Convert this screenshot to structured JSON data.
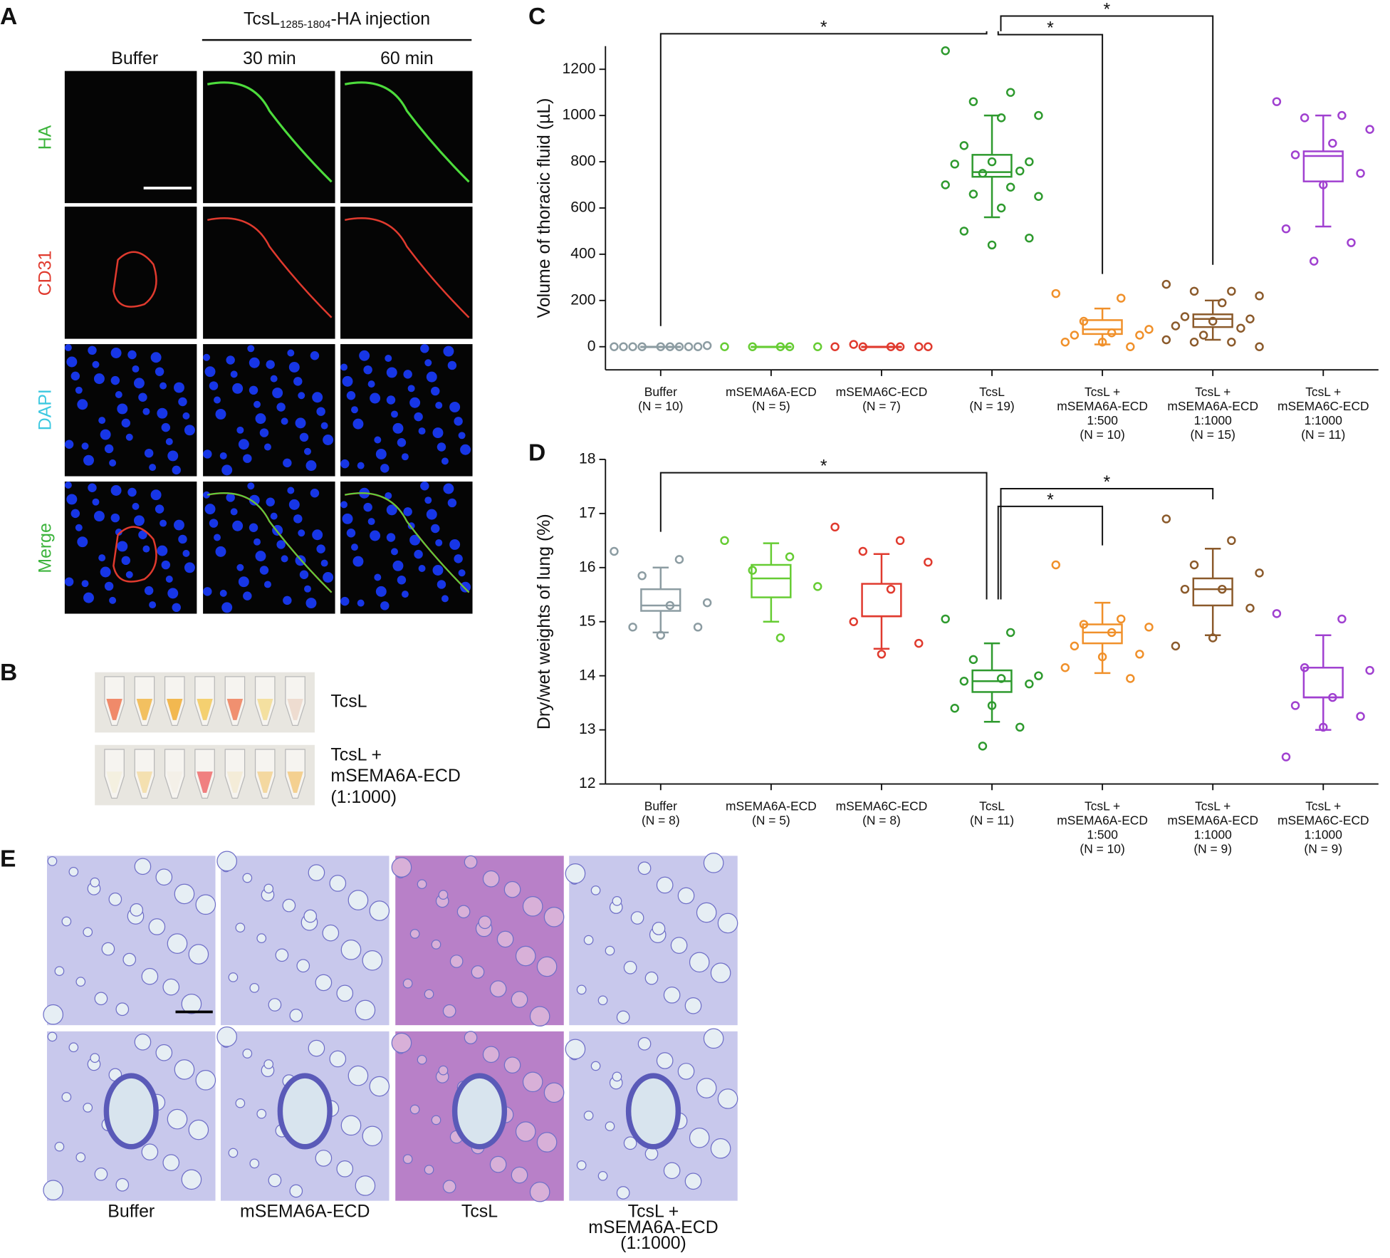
{
  "panels": {
    "A": {
      "label": "A",
      "header": {
        "main": "TcsL",
        "subscript": "1285-1804",
        "suffix": "-HA injection"
      },
      "columns": [
        "Buffer",
        "30 min",
        "60 min"
      ],
      "rows": [
        "HA",
        "CD31",
        "DAPI",
        "Merge"
      ]
    },
    "B": {
      "label": "B",
      "rows": [
        [
          "TcsL"
        ],
        [
          "TcsL +",
          "mSEMA6A-ECD",
          "(1:1000)"
        ]
      ]
    },
    "C": {
      "label": "C"
    },
    "D": {
      "label": "D"
    },
    "E": {
      "label": "E",
      "columns": [
        [
          "Buffer"
        ],
        [
          "mSEMA6A-ECD"
        ],
        [
          "TcsL"
        ],
        [
          "TcsL +",
          "mSEMA6A-ECD",
          "(1:1000)"
        ]
      ]
    }
  },
  "chart_data": [
    {
      "type": "box",
      "y_label": "Volume of thoracic fluid (µL)",
      "ylim": [
        -100,
        1300
      ],
      "yticks": [
        0,
        200,
        400,
        600,
        800,
        1000,
        1200
      ],
      "categories": [
        [
          "Buffer"
        ],
        [
          "mSEMA6A-ECD"
        ],
        [
          "mSEMA6C-ECD"
        ],
        [
          "TcsL"
        ],
        [
          "TcsL +",
          "mSEMA6A-ECD",
          "1:500"
        ],
        [
          "TcsL +",
          "mSEMA6A-ECD",
          "1:1000"
        ],
        [
          "TcsL +",
          "mSEMA6C-ECD",
          "1:1000"
        ]
      ],
      "n_labels": [
        "(N = 10)",
        "(N = 5)",
        "(N = 7)",
        "(N = 19)",
        "(N = 10)",
        "(N = 15)",
        "(N = 11)"
      ],
      "groups": [
        {
          "color": "#8c9ca2",
          "points": [
            0,
            0,
            0,
            5,
            0,
            0,
            0,
            0,
            0,
            0
          ],
          "q1": 0,
          "median": 0,
          "q3": 0,
          "whisker_low": 0,
          "whisker_high": 0
        },
        {
          "color": "#66cc33",
          "points": [
            0,
            0,
            0,
            0,
            0
          ],
          "q1": 0,
          "median": 0,
          "q3": 0,
          "whisker_low": 0,
          "whisker_high": 0
        },
        {
          "color": "#e03a2e",
          "points": [
            0,
            0,
            0,
            0,
            0,
            10,
            0
          ],
          "q1": 0,
          "median": 0,
          "q3": 0,
          "whisker_low": 0,
          "whisker_high": 0
        },
        {
          "color": "#2e9a2e",
          "points": [
            1280,
            1100,
            1060,
            1000,
            990,
            870,
            800,
            800,
            790,
            760,
            750,
            700,
            690,
            660,
            650,
            600,
            500,
            470,
            440
          ],
          "q1": 735,
          "median": 755,
          "q3": 830,
          "whisker_low": 560,
          "whisker_high": 1000
        },
        {
          "color": "#f0902a",
          "points": [
            230,
            210,
            110,
            75,
            60,
            50,
            50,
            20,
            20,
            0
          ],
          "q1": 55,
          "median": 75,
          "q3": 115,
          "whisker_low": 10,
          "whisker_high": 165
        },
        {
          "color": "#8b5a2b",
          "points": [
            270,
            240,
            240,
            220,
            190,
            130,
            120,
            110,
            90,
            80,
            50,
            30,
            20,
            20,
            0
          ],
          "q1": 85,
          "median": 120,
          "q3": 140,
          "whisker_low": 30,
          "whisker_high": 200
        },
        {
          "color": "#a040d0",
          "points": [
            1060,
            1000,
            990,
            940,
            880,
            830,
            750,
            700,
            510,
            450,
            370
          ],
          "q1": 715,
          "median": 825,
          "q3": 845,
          "whisker_low": 520,
          "whisker_high": 1000
        }
      ],
      "significance": [
        {
          "pair": [
            0,
            3
          ],
          "text": "*"
        },
        {
          "pair": [
            3,
            4
          ],
          "text": "*"
        },
        {
          "pair": [
            3,
            5
          ],
          "text": "*"
        }
      ]
    },
    {
      "type": "box",
      "y_label": "Dry/wet weights of lung (%)",
      "ylim": [
        12,
        18
      ],
      "yticks": [
        12,
        13,
        14,
        15,
        16,
        17,
        18
      ],
      "categories": [
        [
          "Buffer"
        ],
        [
          "mSEMA6A-ECD"
        ],
        [
          "mSEMA6C-ECD"
        ],
        [
          "TcsL"
        ],
        [
          "TcsL +",
          "mSEMA6A-ECD",
          "1:500"
        ],
        [
          "TcsL +",
          "mSEMA6A-ECD",
          "1:1000"
        ],
        [
          "TcsL +",
          "mSEMA6C-ECD",
          "1:1000"
        ]
      ],
      "n_labels": [
        "(N = 8)",
        "(N = 5)",
        "(N = 8)",
        "(N = 11)",
        "(N = 10)",
        "(N = 9)",
        "(N = 9)"
      ],
      "groups": [
        {
          "color": "#8c9ca2",
          "points": [
            16.3,
            16.15,
            15.85,
            15.35,
            15.3,
            14.9,
            14.9,
            14.75
          ],
          "q1": 15.2,
          "median": 15.3,
          "q3": 15.6,
          "whisker_low": 14.8,
          "whisker_high": 16.0
        },
        {
          "color": "#66cc33",
          "points": [
            16.5,
            16.2,
            15.95,
            15.65,
            14.7
          ],
          "q1": 15.45,
          "median": 15.8,
          "q3": 16.05,
          "whisker_low": 15.0,
          "whisker_high": 16.45
        },
        {
          "color": "#e03a2e",
          "points": [
            16.75,
            16.5,
            16.3,
            16.1,
            15.6,
            15.0,
            14.6,
            14.4
          ],
          "q1": 15.1,
          "median": 15.1,
          "q3": 15.7,
          "whisker_low": 14.5,
          "whisker_high": 16.25
        },
        {
          "color": "#2e9a2e",
          "points": [
            15.05,
            14.8,
            14.3,
            14.0,
            13.95,
            13.9,
            13.85,
            13.45,
            13.4,
            13.05,
            12.7
          ],
          "q1": 13.7,
          "median": 13.9,
          "q3": 14.1,
          "whisker_low": 13.15,
          "whisker_high": 14.6
        },
        {
          "color": "#f0902a",
          "points": [
            16.05,
            15.05,
            14.95,
            14.9,
            14.8,
            14.55,
            14.4,
            14.35,
            14.15,
            13.95
          ],
          "q1": 14.6,
          "median": 14.8,
          "q3": 14.95,
          "whisker_low": 14.05,
          "whisker_high": 15.35
        },
        {
          "color": "#8b5a2b",
          "points": [
            16.9,
            16.5,
            16.05,
            15.9,
            15.6,
            15.6,
            15.25,
            14.7,
            14.55
          ],
          "q1": 15.3,
          "median": 15.6,
          "q3": 15.8,
          "whisker_low": 14.75,
          "whisker_high": 16.35
        },
        {
          "color": "#a040d0",
          "points": [
            15.15,
            15.05,
            14.15,
            14.1,
            13.6,
            13.45,
            13.25,
            13.05,
            12.5
          ],
          "q1": 13.6,
          "median": 13.6,
          "q3": 14.15,
          "whisker_low": 13.0,
          "whisker_high": 14.75
        }
      ],
      "significance": [
        {
          "pair": [
            0,
            3
          ],
          "text": "*"
        },
        {
          "pair": [
            3,
            4
          ],
          "text": "*"
        },
        {
          "pair": [
            3,
            5
          ],
          "text": "*"
        }
      ]
    }
  ]
}
